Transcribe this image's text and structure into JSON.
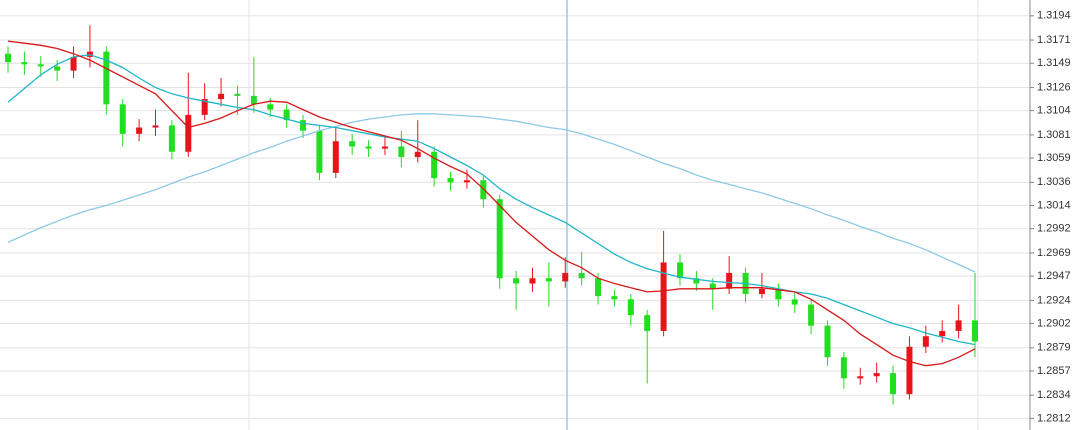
{
  "chart_data": {
    "type": "candlestick",
    "open": [
      1.3158,
      1.315,
      1.3148,
      1.3146,
      1.3142,
      1.3155,
      1.316,
      1.311,
      1.3082,
      1.3088,
      1.309,
      1.3065,
      1.31,
      1.3115,
      1.312,
      1.3118,
      1.311,
      1.3105,
      1.3095,
      1.3085,
      1.3045,
      1.3075,
      1.307,
      1.3068,
      1.307,
      1.306,
      1.3065,
      1.304,
      1.3036,
      1.3038,
      1.302,
      1.2945,
      1.294,
      1.2945,
      1.2942,
      1.295,
      1.2945,
      1.2928,
      1.2925,
      1.291,
      1.2895,
      1.296,
      1.2945,
      1.294,
      1.2935,
      1.295,
      1.293,
      1.2935,
      1.2925,
      1.292,
      1.29,
      1.287,
      1.285,
      1.2852,
      1.2855,
      1.2835,
      1.288,
      1.289,
      1.2895,
      1.2905
    ],
    "high": [
      1.3165,
      1.316,
      1.3156,
      1.3152,
      1.3165,
      1.3185,
      1.3165,
      1.3115,
      1.3096,
      1.3105,
      1.3095,
      1.314,
      1.313,
      1.3135,
      1.3128,
      1.3155,
      1.3116,
      1.311,
      1.31,
      1.309,
      1.3088,
      1.3082,
      1.3076,
      1.308,
      1.3085,
      1.3095,
      1.307,
      1.3046,
      1.3048,
      1.3042,
      1.3024,
      1.2952,
      1.2955,
      1.296,
      1.2965,
      1.297,
      1.295,
      1.2934,
      1.293,
      1.2915,
      1.299,
      1.2968,
      1.2952,
      1.2945,
      1.2966,
      1.2955,
      1.295,
      1.294,
      1.2932,
      1.2925,
      1.2905,
      1.2875,
      1.286,
      1.2865,
      1.2862,
      1.289,
      1.29,
      1.2905,
      1.292,
      1.295
    ],
    "low": [
      1.314,
      1.3138,
      1.3136,
      1.3132,
      1.3135,
      1.3145,
      1.31,
      1.307,
      1.3075,
      1.308,
      1.3058,
      1.306,
      1.3095,
      1.3108,
      1.31,
      1.3102,
      1.3098,
      1.3088,
      1.3078,
      1.3038,
      1.304,
      1.3062,
      1.306,
      1.3062,
      1.305,
      1.3055,
      1.3032,
      1.3028,
      1.303,
      1.3012,
      1.2935,
      1.2915,
      1.2932,
      1.2918,
      1.2936,
      1.2938,
      1.292,
      1.2918,
      1.29,
      1.2845,
      1.289,
      1.2938,
      1.2933,
      1.2915,
      1.293,
      1.2922,
      1.2926,
      1.2918,
      1.2912,
      1.2892,
      1.2862,
      1.284,
      1.2844,
      1.2846,
      1.2825,
      1.283,
      1.2874,
      1.2884,
      1.2888,
      1.287
    ],
    "close": [
      1.315,
      1.3148,
      1.3146,
      1.3142,
      1.3155,
      1.316,
      1.311,
      1.3082,
      1.3088,
      1.309,
      1.3065,
      1.31,
      1.3115,
      1.312,
      1.3118,
      1.311,
      1.3105,
      1.3095,
      1.3085,
      1.3045,
      1.3075,
      1.307,
      1.3068,
      1.307,
      1.306,
      1.3065,
      1.304,
      1.3036,
      1.3038,
      1.302,
      1.2945,
      1.294,
      1.2945,
      1.2942,
      1.295,
      1.2945,
      1.2928,
      1.2925,
      1.291,
      1.2895,
      1.296,
      1.2945,
      1.294,
      1.2935,
      1.295,
      1.293,
      1.2935,
      1.2925,
      1.292,
      1.29,
      1.287,
      1.285,
      1.2852,
      1.2855,
      1.2835,
      1.288,
      1.289,
      1.2895,
      1.2905,
      1.2885
    ],
    "up_color": "#e8141a",
    "down_color": "#22dd22",
    "lines": [
      {
        "color": "#8ec9e6",
        "values": [
          1.2979,
          1.2986,
          1.2993,
          1.2999,
          1.3005,
          1.301,
          1.3014,
          1.3019,
          1.3024,
          1.3029,
          1.3035,
          1.3041,
          1.3046,
          1.3052,
          1.3058,
          1.3064,
          1.3069,
          1.3075,
          1.308,
          1.3085,
          1.3089,
          1.3093,
          1.3096,
          1.3098,
          1.31,
          1.3101,
          1.3101,
          1.31,
          1.3099,
          1.3098,
          1.3096,
          1.3094,
          1.3091,
          1.3088,
          1.3086,
          1.3082,
          1.3077,
          1.3072,
          1.3066,
          1.306,
          1.3054,
          1.3049,
          1.3043,
          1.3038,
          1.3034,
          1.303,
          1.3026,
          1.3021,
          1.3016,
          1.3011,
          1.3005,
          1.3,
          1.2994,
          1.2989,
          1.2983,
          1.2978,
          1.2972,
          1.2965,
          1.2958,
          1.2951
        ]
      },
      {
        "color": "#1fb6c8",
        "values": [
          1.3112,
          1.3125,
          1.3138,
          1.3148,
          1.3155,
          1.3157,
          1.3152,
          1.3145,
          1.3135,
          1.3126,
          1.312,
          1.3116,
          1.3113,
          1.311,
          1.3107,
          1.3105,
          1.31,
          1.3096,
          1.3092,
          1.309,
          1.3088,
          1.3085,
          1.3082,
          1.3079,
          1.3077,
          1.3075,
          1.3068,
          1.306,
          1.3052,
          1.3043,
          1.303,
          1.302,
          1.3012,
          1.3005,
          1.2998,
          1.2988,
          1.2978,
          1.2968,
          1.296,
          1.2954,
          1.295,
          1.2946,
          1.2944,
          1.2942,
          1.2941,
          1.294,
          1.2938,
          1.2935,
          1.2932,
          1.293,
          1.2926,
          1.292,
          1.2914,
          1.2908,
          1.2902,
          1.2898,
          1.2893,
          1.2889,
          1.2885,
          1.2882
        ]
      },
      {
        "color": "#d81818",
        "values": [
          1.317,
          1.3168,
          1.3166,
          1.3163,
          1.3158,
          1.3152,
          1.3144,
          1.3136,
          1.3128,
          1.312,
          1.3104,
          1.3088,
          1.3092,
          1.3097,
          1.3104,
          1.311,
          1.3113,
          1.3112,
          1.3105,
          1.3098,
          1.3093,
          1.3088,
          1.3084,
          1.308,
          1.3076,
          1.3068,
          1.3059,
          1.3051,
          1.3044,
          1.303,
          1.3014,
          1.2998,
          1.2985,
          1.2972,
          1.2962,
          1.2955,
          1.2945,
          1.294,
          1.2936,
          1.2932,
          1.2933,
          1.2935,
          1.2935,
          1.2935,
          1.2936,
          1.2936,
          1.2936,
          1.2934,
          1.2932,
          1.2925,
          1.2915,
          1.2905,
          1.2892,
          1.2882,
          1.2872,
          1.2866,
          1.2862,
          1.2864,
          1.287,
          1.2878
        ]
      }
    ],
    "ylim": [
      1.2801,
      1.3209
    ],
    "yticks": [
      1.3194,
      1.3171,
      1.3149,
      1.3126,
      1.3104,
      1.3081,
      1.3059,
      1.3036,
      1.3014,
      1.2992,
      1.2969,
      1.2947,
      1.2924,
      1.2902,
      1.2879,
      1.2857,
      1.2834,
      1.2812
    ],
    "grid": true
  }
}
